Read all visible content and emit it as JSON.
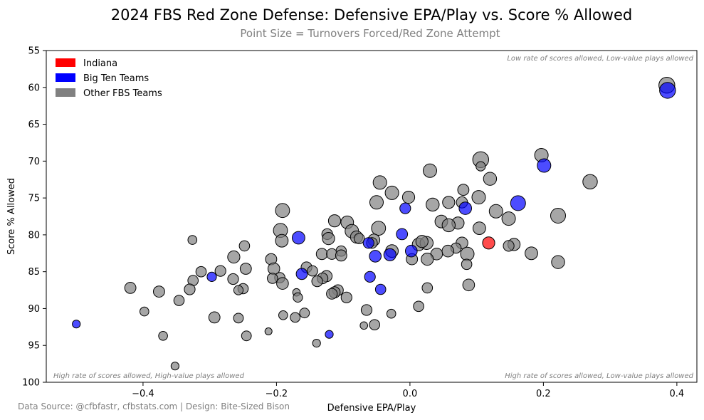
{
  "chart_data": {
    "type": "scatter",
    "title": "2024 FBS Red Zone Defense: Defensive EPA/Play vs. Score % Allowed",
    "subtitle": "Point Size = Turnovers Forced/Red Zone Attempt",
    "xlabel": "Defensive EPA/Play",
    "ylabel": "Score % Allowed",
    "xlim": [
      -0.545,
      0.43
    ],
    "ylim": [
      100,
      55
    ],
    "y_inverted": true,
    "xticks": [
      -0.4,
      -0.2,
      0.0,
      0.2,
      0.4
    ],
    "xtick_labels": [
      "−0.4",
      "−0.2",
      "0.0",
      "0.2",
      "0.4"
    ],
    "yticks": [
      55,
      60,
      65,
      70,
      75,
      80,
      85,
      90,
      95,
      100
    ],
    "ytick_labels": [
      "55",
      "60",
      "65",
      "70",
      "75",
      "80",
      "85",
      "90",
      "95",
      "100"
    ],
    "grid": false,
    "legend_position": "top-left",
    "legend": [
      {
        "label": "Indiana",
        "color": "#ff0000"
      },
      {
        "label": "Big Ten Teams",
        "color": "#0000ff"
      },
      {
        "label": "Other FBS Teams",
        "color": "#808080"
      }
    ],
    "annotations": {
      "top_right": "Low rate of scores allowed, Low-value plays allowed",
      "bottom_left": "High rate of scores allowed, High-value plays allowed",
      "bottom_right": "High rate of scores allowed, Low-value plays allowed"
    },
    "size_unit": "turnovers forced per red zone attempt (relative, 0-1)",
    "series": [
      {
        "name": "Indiana",
        "color": "#ff0000",
        "points": [
          {
            "x": 0.118,
            "y": 81.1,
            "s": 0.35
          }
        ]
      },
      {
        "name": "Big Ten Teams",
        "color": "#0000ff",
        "points": [
          {
            "x": 0.386,
            "y": 60.4,
            "s": 0.55
          },
          {
            "x": 0.201,
            "y": 70.6,
            "s": 0.42
          },
          {
            "x": 0.162,
            "y": 75.7,
            "s": 0.5
          },
          {
            "x": 0.083,
            "y": 76.4,
            "s": 0.37
          },
          {
            "x": -0.007,
            "y": 76.4,
            "s": 0.28
          },
          {
            "x": -0.167,
            "y": 80.4,
            "s": 0.38
          },
          {
            "x": -0.012,
            "y": 79.9,
            "s": 0.3
          },
          {
            "x": -0.062,
            "y": 81.1,
            "s": 0.28
          },
          {
            "x": -0.052,
            "y": 82.9,
            "s": 0.33
          },
          {
            "x": -0.03,
            "y": 82.7,
            "s": 0.35
          },
          {
            "x": 0.002,
            "y": 82.2,
            "s": 0.33
          },
          {
            "x": -0.297,
            "y": 85.7,
            "s": 0.2
          },
          {
            "x": -0.162,
            "y": 85.3,
            "s": 0.3
          },
          {
            "x": -0.06,
            "y": 85.7,
            "s": 0.28
          },
          {
            "x": -0.044,
            "y": 87.4,
            "s": 0.25
          },
          {
            "x": -0.5,
            "y": 92.1,
            "s": 0.12
          },
          {
            "x": -0.121,
            "y": 93.5,
            "s": 0.12
          }
        ]
      },
      {
        "name": "Other FBS Teams",
        "color": "#808080",
        "points": [
          {
            "x": 0.385,
            "y": 59.7,
            "s": 0.55
          },
          {
            "x": 0.197,
            "y": 69.2,
            "s": 0.42
          },
          {
            "x": 0.106,
            "y": 69.8,
            "s": 0.55
          },
          {
            "x": 0.106,
            "y": 70.7,
            "s": 0.2
          },
          {
            "x": 0.03,
            "y": 71.3,
            "s": 0.42
          },
          {
            "x": 0.12,
            "y": 72.4,
            "s": 0.4
          },
          {
            "x": 0.27,
            "y": 72.8,
            "s": 0.48
          },
          {
            "x": -0.045,
            "y": 72.9,
            "s": 0.42
          },
          {
            "x": -0.027,
            "y": 74.3,
            "s": 0.42
          },
          {
            "x": -0.002,
            "y": 74.9,
            "s": 0.35
          },
          {
            "x": 0.08,
            "y": 73.9,
            "s": 0.3
          },
          {
            "x": 0.103,
            "y": 74.9,
            "s": 0.42
          },
          {
            "x": 0.058,
            "y": 75.6,
            "s": 0.35
          },
          {
            "x": 0.078,
            "y": 75.6,
            "s": 0.3
          },
          {
            "x": -0.05,
            "y": 75.6,
            "s": 0.42
          },
          {
            "x": 0.034,
            "y": 75.9,
            "s": 0.4
          },
          {
            "x": -0.191,
            "y": 76.7,
            "s": 0.45
          },
          {
            "x": 0.129,
            "y": 76.8,
            "s": 0.42
          },
          {
            "x": 0.222,
            "y": 77.4,
            "s": 0.5
          },
          {
            "x": 0.148,
            "y": 77.8,
            "s": 0.42
          },
          {
            "x": -0.094,
            "y": 78.3,
            "s": 0.38
          },
          {
            "x": -0.113,
            "y": 78.1,
            "s": 0.35
          },
          {
            "x": 0.072,
            "y": 78.4,
            "s": 0.35
          },
          {
            "x": 0.047,
            "y": 78.2,
            "s": 0.38
          },
          {
            "x": 0.058,
            "y": 78.7,
            "s": 0.4
          },
          {
            "x": -0.047,
            "y": 79.1,
            "s": 0.45
          },
          {
            "x": -0.087,
            "y": 79.5,
            "s": 0.42
          },
          {
            "x": -0.194,
            "y": 79.4,
            "s": 0.45
          },
          {
            "x": 0.104,
            "y": 79.1,
            "s": 0.38
          },
          {
            "x": -0.124,
            "y": 79.9,
            "s": 0.28
          },
          {
            "x": -0.122,
            "y": 80.5,
            "s": 0.35
          },
          {
            "x": -0.08,
            "y": 80.3,
            "s": 0.35
          },
          {
            "x": -0.192,
            "y": 80.8,
            "s": 0.38
          },
          {
            "x": -0.054,
            "y": 80.7,
            "s": 0.33
          },
          {
            "x": -0.057,
            "y": 81.1,
            "s": 0.28
          },
          {
            "x": -0.076,
            "y": 80.5,
            "s": 0.25
          },
          {
            "x": -0.326,
            "y": 80.7,
            "s": 0.18
          },
          {
            "x": 0.013,
            "y": 81.3,
            "s": 0.38
          },
          {
            "x": 0.025,
            "y": 81.1,
            "s": 0.4
          },
          {
            "x": 0.018,
            "y": 80.9,
            "s": 0.35
          },
          {
            "x": 0.078,
            "y": 81.1,
            "s": 0.33
          },
          {
            "x": 0.156,
            "y": 81.3,
            "s": 0.35
          },
          {
            "x": 0.148,
            "y": 81.5,
            "s": 0.28
          },
          {
            "x": -0.248,
            "y": 81.5,
            "s": 0.25
          },
          {
            "x": 0.069,
            "y": 81.8,
            "s": 0.25
          },
          {
            "x": 0.057,
            "y": 82.2,
            "s": 0.33
          },
          {
            "x": 0.086,
            "y": 82.6,
            "s": 0.42
          },
          {
            "x": -0.103,
            "y": 82.2,
            "s": 0.25
          },
          {
            "x": -0.132,
            "y": 82.6,
            "s": 0.3
          },
          {
            "x": -0.117,
            "y": 82.6,
            "s": 0.28
          },
          {
            "x": -0.103,
            "y": 82.8,
            "s": 0.3
          },
          {
            "x": 0.04,
            "y": 82.6,
            "s": 0.33
          },
          {
            "x": -0.027,
            "y": 82.2,
            "s": 0.38
          },
          {
            "x": -0.264,
            "y": 83.0,
            "s": 0.35
          },
          {
            "x": -0.208,
            "y": 83.3,
            "s": 0.3
          },
          {
            "x": 0.182,
            "y": 82.5,
            "s": 0.38
          },
          {
            "x": 0.003,
            "y": 83.3,
            "s": 0.3
          },
          {
            "x": 0.026,
            "y": 83.3,
            "s": 0.35
          },
          {
            "x": 0.222,
            "y": 83.7,
            "s": 0.4
          },
          {
            "x": 0.085,
            "y": 84.0,
            "s": 0.25
          },
          {
            "x": -0.204,
            "y": 84.6,
            "s": 0.33
          },
          {
            "x": -0.246,
            "y": 84.6,
            "s": 0.3
          },
          {
            "x": -0.155,
            "y": 84.4,
            "s": 0.28
          },
          {
            "x": -0.146,
            "y": 84.9,
            "s": 0.25
          },
          {
            "x": -0.313,
            "y": 85.0,
            "s": 0.25
          },
          {
            "x": -0.284,
            "y": 84.9,
            "s": 0.28
          },
          {
            "x": -0.195,
            "y": 85.8,
            "s": 0.25
          },
          {
            "x": -0.206,
            "y": 85.9,
            "s": 0.25
          },
          {
            "x": -0.265,
            "y": 86.0,
            "s": 0.28
          },
          {
            "x": -0.325,
            "y": 86.2,
            "s": 0.25
          },
          {
            "x": -0.125,
            "y": 85.6,
            "s": 0.3
          },
          {
            "x": -0.131,
            "y": 85.9,
            "s": 0.28
          },
          {
            "x": -0.139,
            "y": 86.3,
            "s": 0.28
          },
          {
            "x": -0.191,
            "y": 86.6,
            "s": 0.33
          },
          {
            "x": 0.088,
            "y": 86.8,
            "s": 0.33
          },
          {
            "x": 0.026,
            "y": 87.2,
            "s": 0.25
          },
          {
            "x": -0.419,
            "y": 87.2,
            "s": 0.3
          },
          {
            "x": -0.33,
            "y": 87.4,
            "s": 0.28
          },
          {
            "x": -0.25,
            "y": 87.3,
            "s": 0.25
          },
          {
            "x": -0.257,
            "y": 87.5,
            "s": 0.2
          },
          {
            "x": -0.108,
            "y": 87.5,
            "s": 0.28
          },
          {
            "x": -0.113,
            "y": 87.8,
            "s": 0.3
          },
          {
            "x": -0.117,
            "y": 88.0,
            "s": 0.28
          },
          {
            "x": -0.376,
            "y": 87.7,
            "s": 0.3
          },
          {
            "x": -0.17,
            "y": 87.8,
            "s": 0.1
          },
          {
            "x": -0.168,
            "y": 88.5,
            "s": 0.2
          },
          {
            "x": -0.095,
            "y": 88.5,
            "s": 0.28
          },
          {
            "x": -0.346,
            "y": 88.9,
            "s": 0.25
          },
          {
            "x": -0.065,
            "y": 90.2,
            "s": 0.28
          },
          {
            "x": 0.013,
            "y": 89.7,
            "s": 0.25
          },
          {
            "x": -0.398,
            "y": 90.4,
            "s": 0.18
          },
          {
            "x": -0.028,
            "y": 90.7,
            "s": 0.18
          },
          {
            "x": -0.158,
            "y": 90.6,
            "s": 0.22
          },
          {
            "x": -0.19,
            "y": 90.9,
            "s": 0.18
          },
          {
            "x": -0.293,
            "y": 91.2,
            "s": 0.3
          },
          {
            "x": -0.172,
            "y": 91.2,
            "s": 0.22
          },
          {
            "x": -0.257,
            "y": 91.3,
            "s": 0.22
          },
          {
            "x": -0.053,
            "y": 92.2,
            "s": 0.25
          },
          {
            "x": -0.069,
            "y": 92.3,
            "s": 0.1
          },
          {
            "x": -0.212,
            "y": 93.1,
            "s": 0.08
          },
          {
            "x": -0.37,
            "y": 93.7,
            "s": 0.18
          },
          {
            "x": -0.245,
            "y": 93.7,
            "s": 0.22
          },
          {
            "x": -0.14,
            "y": 94.7,
            "s": 0.12
          },
          {
            "x": -0.352,
            "y": 97.8,
            "s": 0.12
          }
        ]
      }
    ]
  },
  "footer": {
    "source": "Data Source: @cfbfastr, cfbstats.com | Design: Bite-Sized Bison"
  }
}
